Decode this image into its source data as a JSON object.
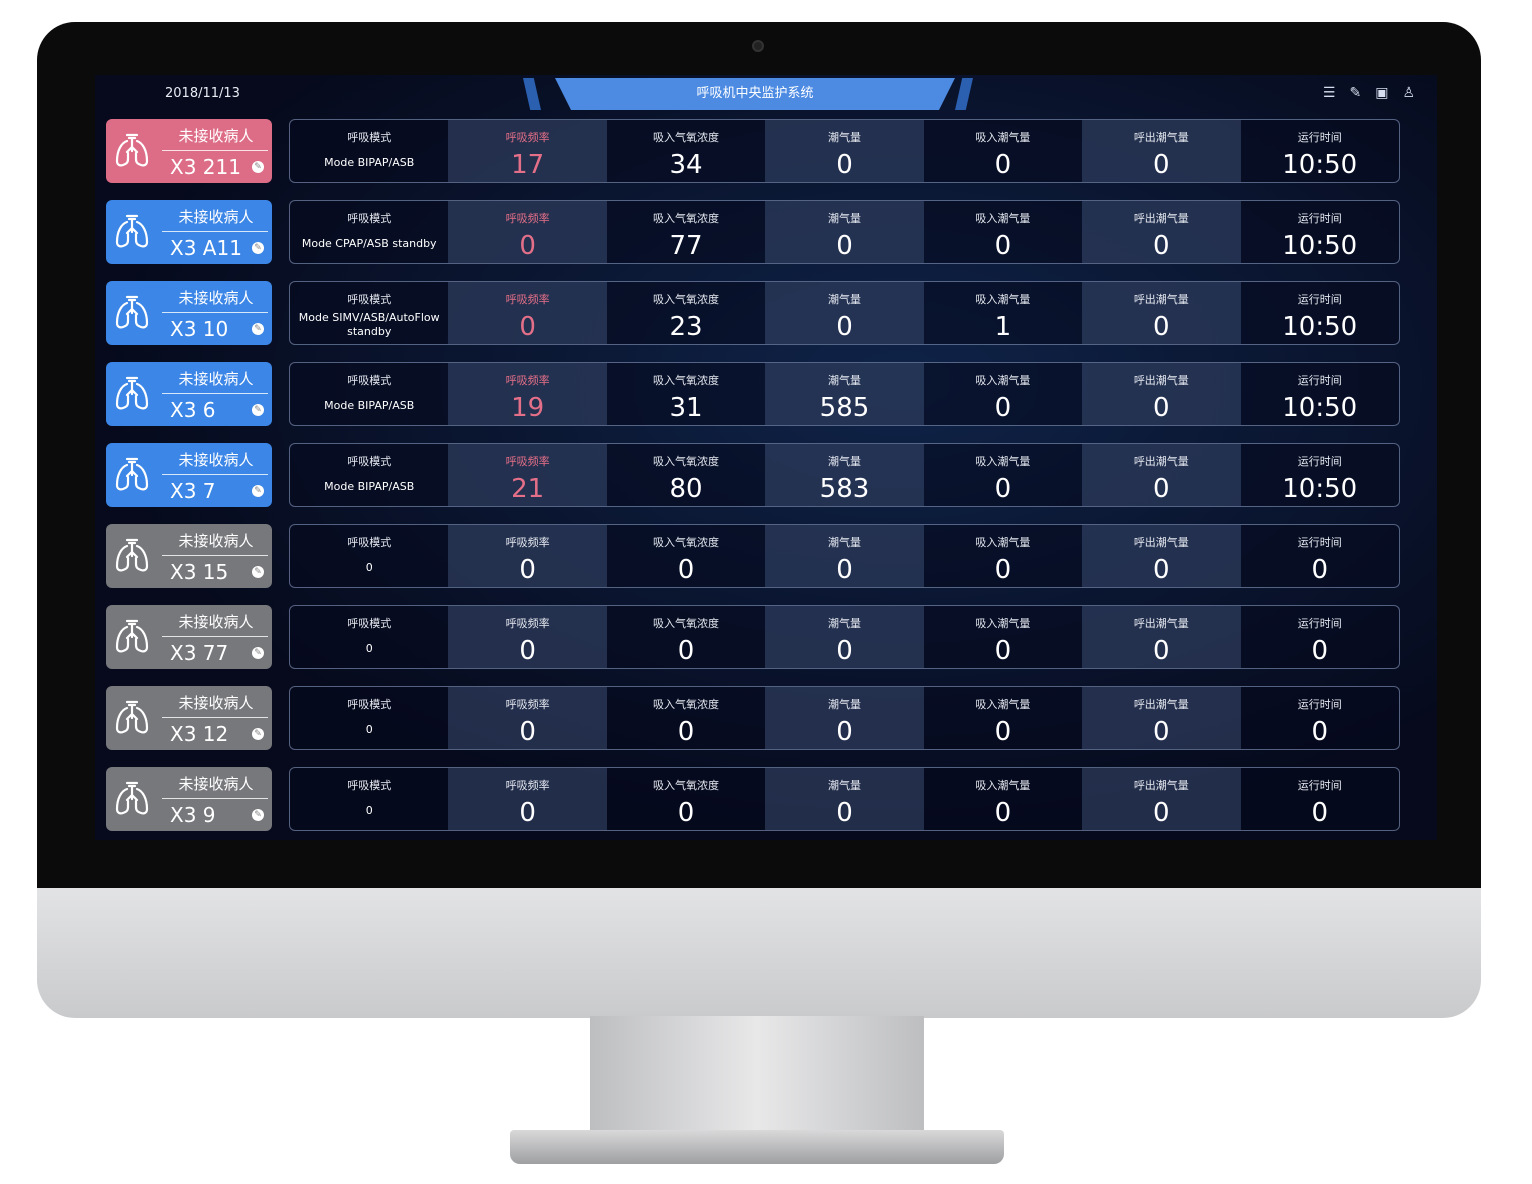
{
  "header": {
    "date": "2018/11/13",
    "title": "呼吸机中央监护系统",
    "icons": [
      "list-icon",
      "edit-icon",
      "layout-icon",
      "user-icon"
    ]
  },
  "labels": [
    "呼吸模式",
    "呼吸频率",
    "吸入气氧浓度",
    "潮气量",
    "吸入潮气量",
    "呼出潮气量",
    "运行时间"
  ],
  "colors": {
    "alarm": "#dd6d87",
    "active": "#3b86e6",
    "inactive": "#77787c"
  },
  "rows": [
    {
      "status": "alarm",
      "patient": "未接收病人",
      "bed": "X3 211",
      "mode": "Mode BIPAP/ASB",
      "rate": "17",
      "fio2": "34",
      "tidal": "0",
      "in_tidal": "0",
      "ex_tidal": "0",
      "runtime": "10:50",
      "rate_red": true
    },
    {
      "status": "active",
      "patient": "未接收病人",
      "bed": "X3 A11",
      "mode": "Mode CPAP/ASB standby",
      "rate": "0",
      "fio2": "77",
      "tidal": "0",
      "in_tidal": "0",
      "ex_tidal": "0",
      "runtime": "10:50",
      "rate_red": true
    },
    {
      "status": "active",
      "patient": "未接收病人",
      "bed": "X3 10",
      "mode": "Mode SIMV/ASB/AutoFlow standby",
      "rate": "0",
      "fio2": "23",
      "tidal": "0",
      "in_tidal": "1",
      "ex_tidal": "0",
      "runtime": "10:50",
      "rate_red": true
    },
    {
      "status": "active",
      "patient": "未接收病人",
      "bed": "X3 6",
      "mode": "Mode BIPAP/ASB",
      "rate": "19",
      "fio2": "31",
      "tidal": "585",
      "in_tidal": "0",
      "ex_tidal": "0",
      "runtime": "10:50",
      "rate_red": true
    },
    {
      "status": "active",
      "patient": "未接收病人",
      "bed": "X3 7",
      "mode": "Mode BIPAP/ASB",
      "rate": "21",
      "fio2": "80",
      "tidal": "583",
      "in_tidal": "0",
      "ex_tidal": "0",
      "runtime": "10:50",
      "rate_red": true
    },
    {
      "status": "inactive",
      "patient": "未接收病人",
      "bed": "X3 15",
      "mode": "0",
      "rate": "0",
      "fio2": "0",
      "tidal": "0",
      "in_tidal": "0",
      "ex_tidal": "0",
      "runtime": "0",
      "rate_red": false
    },
    {
      "status": "inactive",
      "patient": "未接收病人",
      "bed": "X3 77",
      "mode": "0",
      "rate": "0",
      "fio2": "0",
      "tidal": "0",
      "in_tidal": "0",
      "ex_tidal": "0",
      "runtime": "0",
      "rate_red": false
    },
    {
      "status": "inactive",
      "patient": "未接收病人",
      "bed": "X3 12",
      "mode": "0",
      "rate": "0",
      "fio2": "0",
      "tidal": "0",
      "in_tidal": "0",
      "ex_tidal": "0",
      "runtime": "0",
      "rate_red": false
    },
    {
      "status": "inactive",
      "patient": "未接收病人",
      "bed": "X3 9",
      "mode": "0",
      "rate": "0",
      "fio2": "0",
      "tidal": "0",
      "in_tidal": "0",
      "ex_tidal": "0",
      "runtime": "0",
      "rate_red": false
    }
  ]
}
